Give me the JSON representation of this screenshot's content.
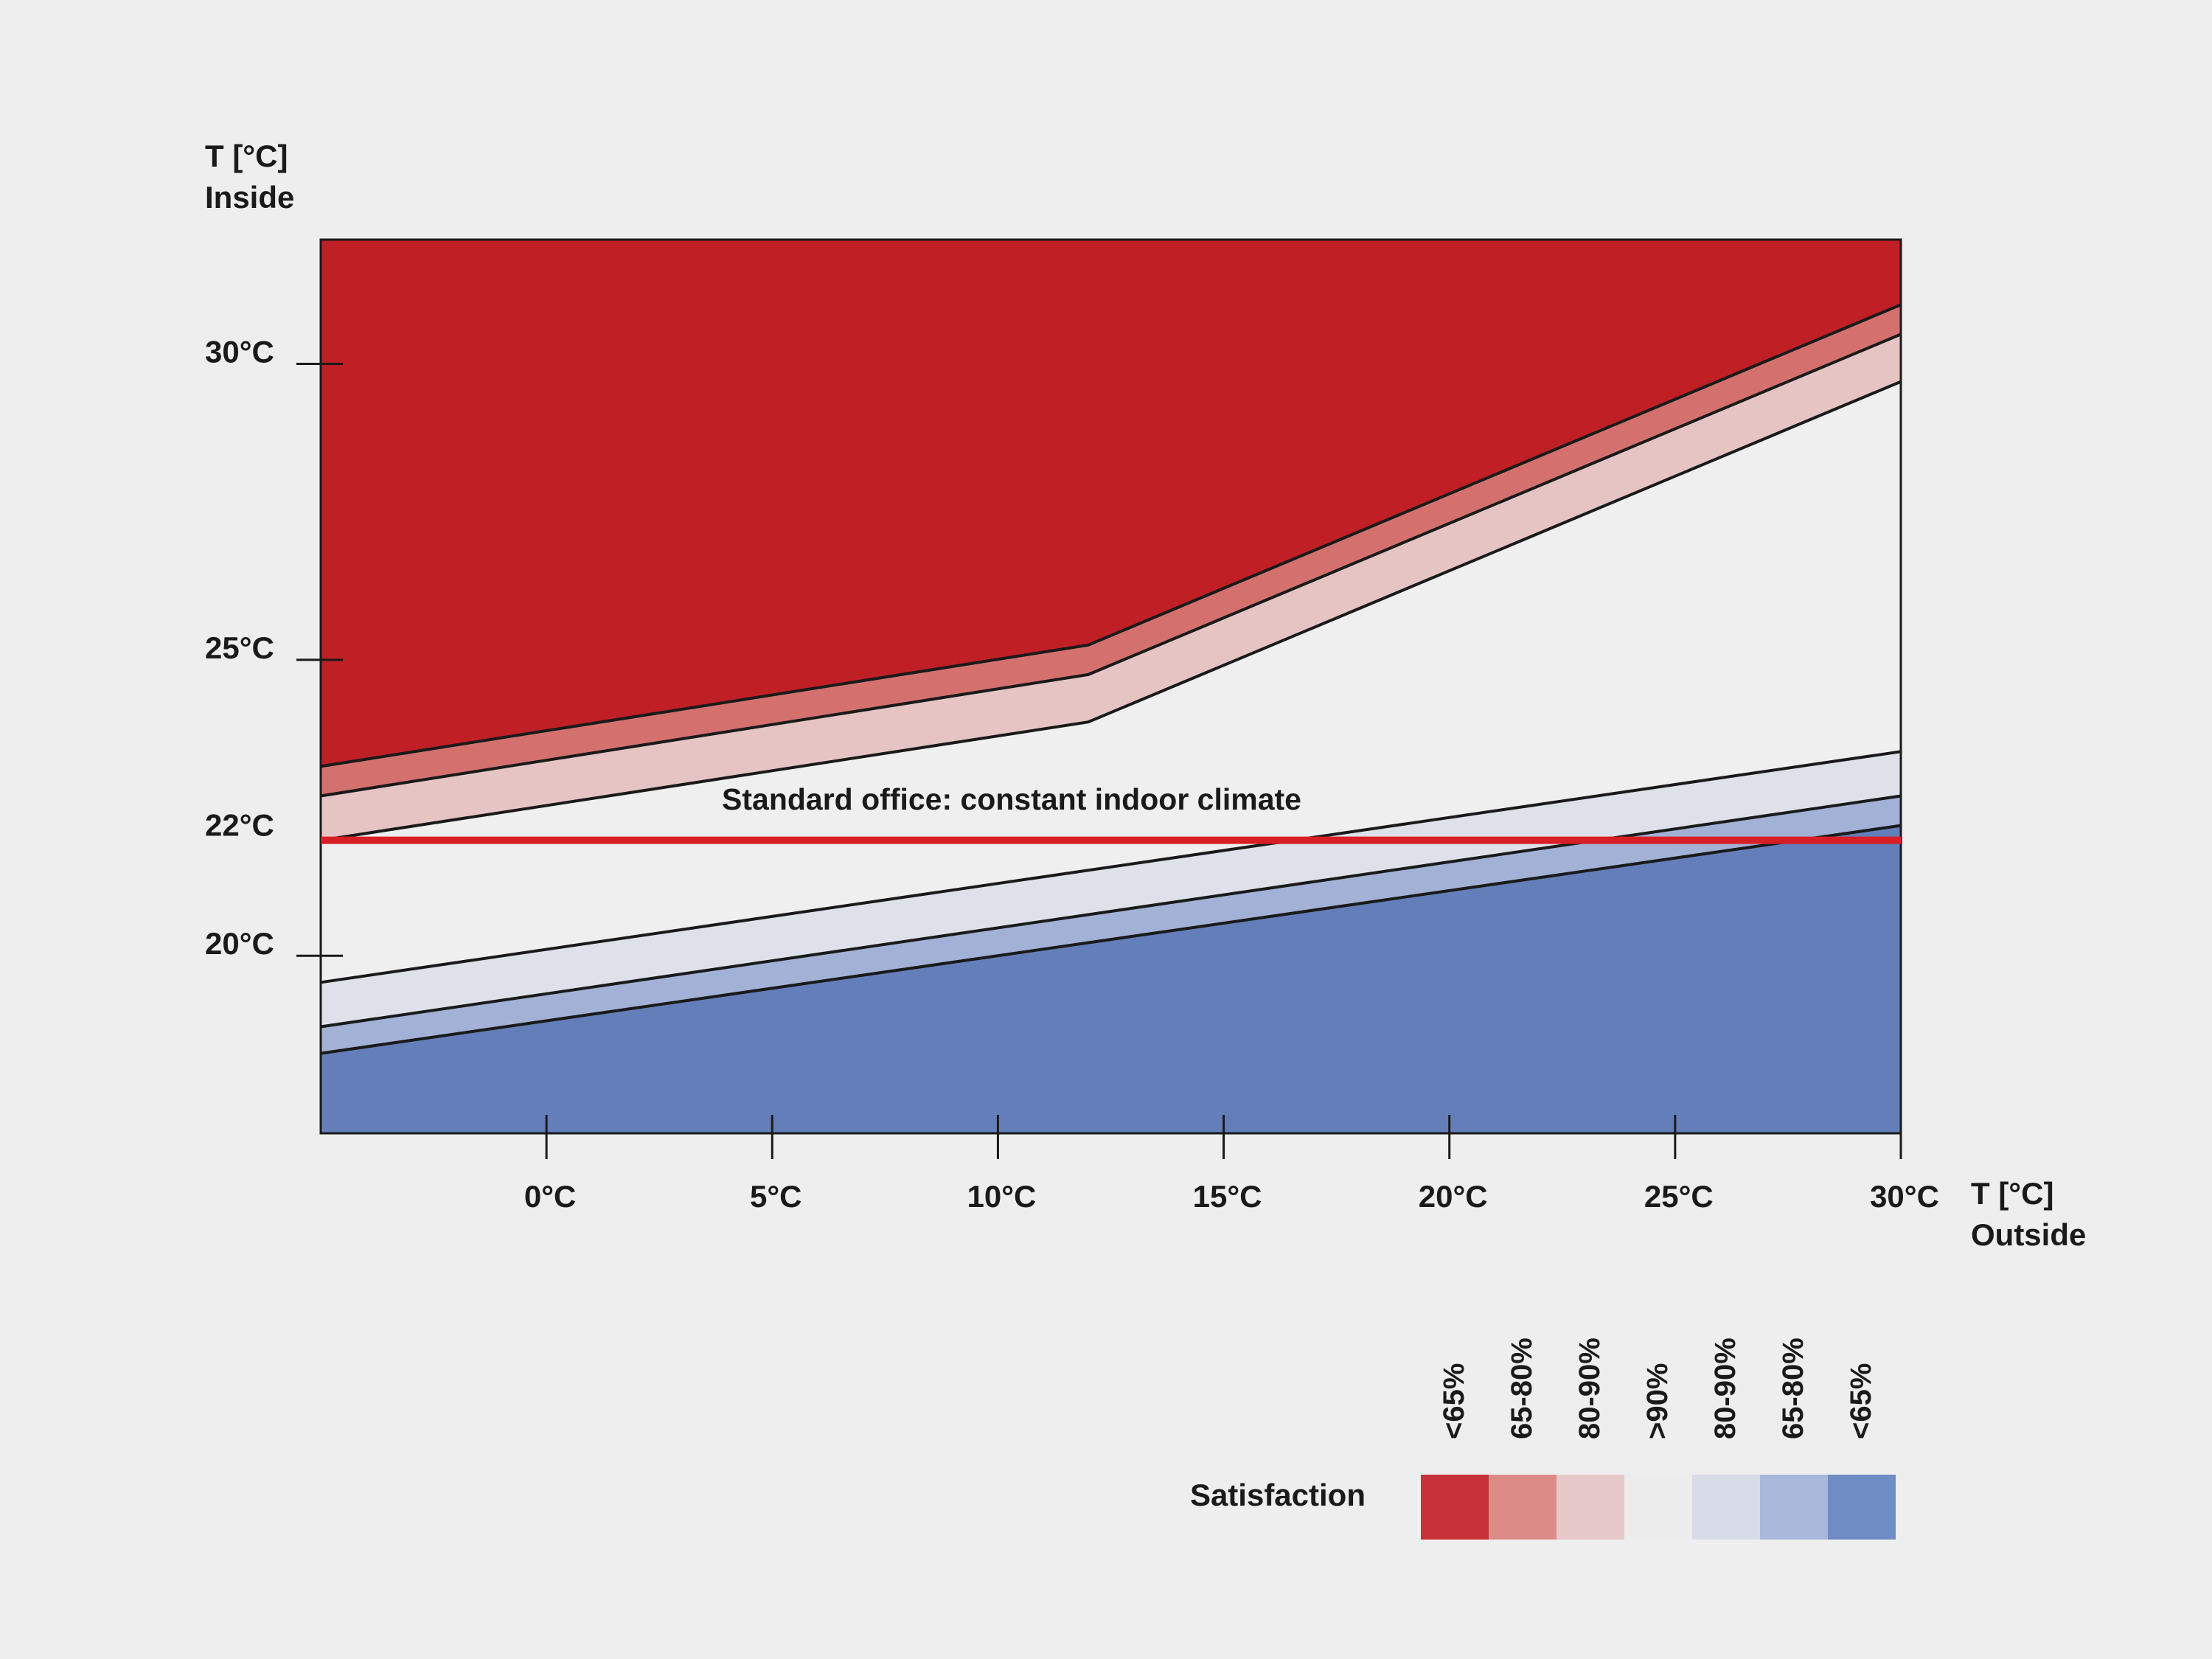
{
  "chart_data": {
    "type": "area",
    "title": "",
    "xlabel": [
      "T [°C]",
      "Outside"
    ],
    "ylabel": [
      "T [°C]",
      "Inside"
    ],
    "x_tick_labels": [
      "0°C",
      "5°C",
      "10°C",
      "15°C",
      "20°C",
      "25°C",
      "30°C"
    ],
    "y_tick_labels": [
      {
        "value": 30,
        "label": "30°C"
      },
      {
        "value": 25,
        "label": "25°C"
      },
      {
        "value": 22,
        "label": "22°C"
      },
      {
        "value": 20,
        "label": "20°C"
      }
    ],
    "xlim": [
      -5,
      30
    ],
    "ylim": [
      17,
      32.1
    ],
    "boundaries": [
      {
        "name": "upper-65",
        "points": [
          [
            -5,
            23.2
          ],
          [
            12,
            25.25
          ],
          [
            30,
            31.0
          ]
        ]
      },
      {
        "name": "upper-80",
        "points": [
          [
            -5,
            22.7
          ],
          [
            12,
            24.75
          ],
          [
            30,
            30.5
          ]
        ]
      },
      {
        "name": "upper-90",
        "points": [
          [
            -5,
            21.95
          ],
          [
            12,
            23.95
          ],
          [
            30,
            29.7
          ]
        ]
      },
      {
        "name": "lower-90",
        "points": [
          [
            -5,
            19.55
          ],
          [
            30,
            23.45
          ]
        ]
      },
      {
        "name": "lower-80",
        "points": [
          [
            -5,
            18.8
          ],
          [
            30,
            22.7
          ]
        ]
      },
      {
        "name": "lower-65",
        "points": [
          [
            -5,
            18.35
          ],
          [
            30,
            22.2
          ]
        ]
      }
    ],
    "zones": [
      {
        "name": "upper <65%",
        "color": "#c01f26",
        "between": [
          "top",
          "upper-65"
        ]
      },
      {
        "name": "upper 65-80%",
        "color": "#d4716f",
        "between": [
          "upper-65",
          "upper-80"
        ]
      },
      {
        "name": "upper 80-90%",
        "color": "#e6c4c4",
        "between": [
          "upper-80",
          "upper-90"
        ]
      },
      {
        "name": ">90%",
        "color": "#efefef",
        "between": [
          "upper-90",
          "lower-90"
        ]
      },
      {
        "name": "lower 80-90%",
        "color": "#dfe1ea",
        "between": [
          "lower-90",
          "lower-80"
        ]
      },
      {
        "name": "lower 65-80%",
        "color": "#a2b1d6",
        "between": [
          "lower-80",
          "lower-65"
        ]
      },
      {
        "name": "lower <65%",
        "color": "#637eb8",
        "between": [
          "lower-65",
          "bottom"
        ]
      }
    ],
    "reference_line": {
      "label": "Standard office: constant indoor climate",
      "value": 22,
      "color": "#d81f26"
    },
    "legend": {
      "title": "Satisfaction",
      "position": "bottom-right",
      "items": [
        {
          "label": "<65%",
          "color": "#c8313a"
        },
        {
          "label": "65-80%",
          "color": "#db8a86"
        },
        {
          "label": "80-90%",
          "color": "#e7c8c9"
        },
        {
          "label": ">90%",
          "color": "#ececec"
        },
        {
          "label": "80-90%",
          "color": "#d8dbe8"
        },
        {
          "label": "65-80%",
          "color": "#a9b7da"
        },
        {
          "label": "<65%",
          "color": "#6f8cc4"
        }
      ]
    }
  }
}
